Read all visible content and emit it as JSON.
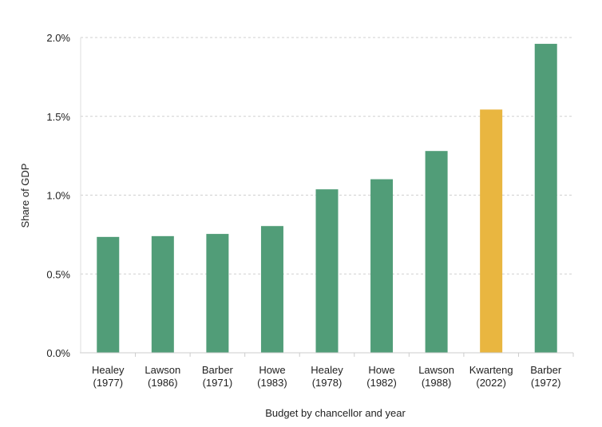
{
  "chart_data": {
    "type": "bar",
    "title": "",
    "xlabel": "Budget by chancellor and year",
    "ylabel": "Share of GDP",
    "ylim": [
      0,
      2.0
    ],
    "yticks": [
      0,
      0.5,
      1.0,
      1.5,
      2.0
    ],
    "ytick_labels": [
      "0.0%",
      "0.5%",
      "1.0%",
      "1.5%",
      "2.0%"
    ],
    "grid": true,
    "categories": [
      [
        "Healey",
        "(1977)"
      ],
      [
        "Lawson",
        "(1986)"
      ],
      [
        "Barber",
        "(1971)"
      ],
      [
        "Howe",
        "(1983)"
      ],
      [
        "Healey",
        "(1978)"
      ],
      [
        "Howe",
        "(1982)"
      ],
      [
        "Lawson",
        "(1988)"
      ],
      [
        "Kwarteng",
        "(2022)"
      ],
      [
        "Barber",
        "(1972)"
      ]
    ],
    "values": [
      0.735,
      0.74,
      0.754,
      0.804,
      1.037,
      1.101,
      1.28,
      1.543,
      1.96
    ],
    "colors": [
      "#519d78",
      "#519d78",
      "#519d78",
      "#519d78",
      "#519d78",
      "#519d78",
      "#519d78",
      "#e9b640",
      "#519d78"
    ]
  }
}
